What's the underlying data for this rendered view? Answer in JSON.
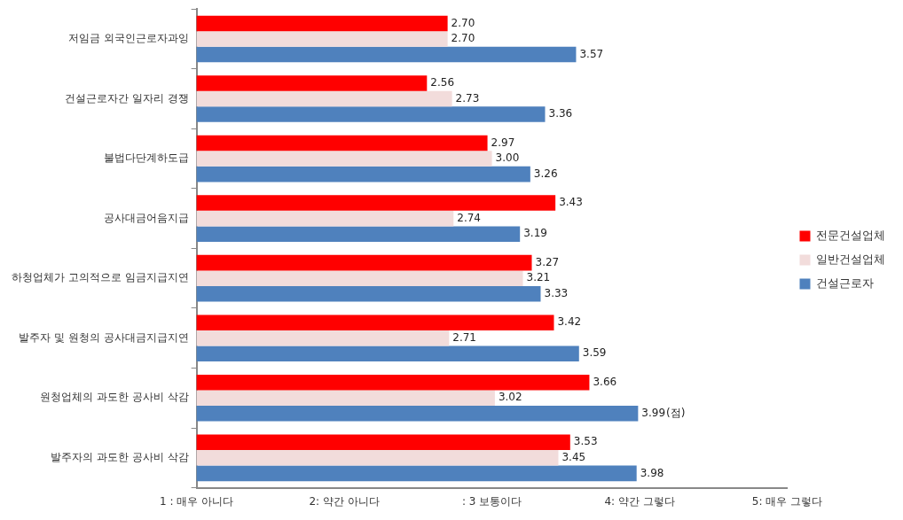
{
  "chart_data": {
    "type": "bar",
    "orientation": "horizontal",
    "categories": [
      "저임금 외국인근로자과잉",
      "건설근로자간 일자리 경쟁",
      "불법다단계하도급",
      "공사대금어음지급",
      "하청업체가 고의적으로 임금지급지연",
      "발주자 및 원청의 공사대금지급지연",
      "원청업체의 과도한 공사비 삭감",
      "발주자의 과도한 공사비 삭감"
    ],
    "series": [
      {
        "name": "전문건설업체",
        "color": "#ff0000",
        "values": [
          2.7,
          2.56,
          2.97,
          3.43,
          3.27,
          3.42,
          3.66,
          3.53
        ],
        "value_labels": [
          "2.70",
          "2.56",
          "2.97",
          "3.43",
          "3.27",
          "3.42",
          "3.66",
          "3.53"
        ]
      },
      {
        "name": "일반건설업체",
        "color": "#f2dcdb",
        "values": [
          2.7,
          2.73,
          3.0,
          2.74,
          3.21,
          2.71,
          3.02,
          3.45
        ],
        "value_labels": [
          "2.70",
          "2.73",
          "3.00",
          "2.74",
          "3.21",
          "2.71",
          "3.02",
          "3.45"
        ]
      },
      {
        "name": "건설근로자",
        "color": "#4f81bd",
        "values": [
          3.57,
          3.36,
          3.26,
          3.19,
          3.33,
          3.59,
          3.99,
          3.98
        ],
        "value_labels": [
          "3.57",
          "3.36",
          "3.26",
          "3.19",
          "3.33",
          "3.59",
          "3.99",
          "3.98"
        ]
      }
    ],
    "xlim": [
      1,
      5
    ],
    "xticks": [
      {
        "value": 1,
        "label": "1 : 매우 아니다"
      },
      {
        "value": 2,
        "label": "2: 약간 아니다"
      },
      {
        "value": 3,
        "label": ": 3 보통이다"
      },
      {
        "value": 4,
        "label": "4: 약간 그렇다"
      },
      {
        "value": 5,
        "label": "5: 매우 그렇다"
      }
    ],
    "annotations": [
      "(점)"
    ],
    "grid": false,
    "legend": "right"
  }
}
